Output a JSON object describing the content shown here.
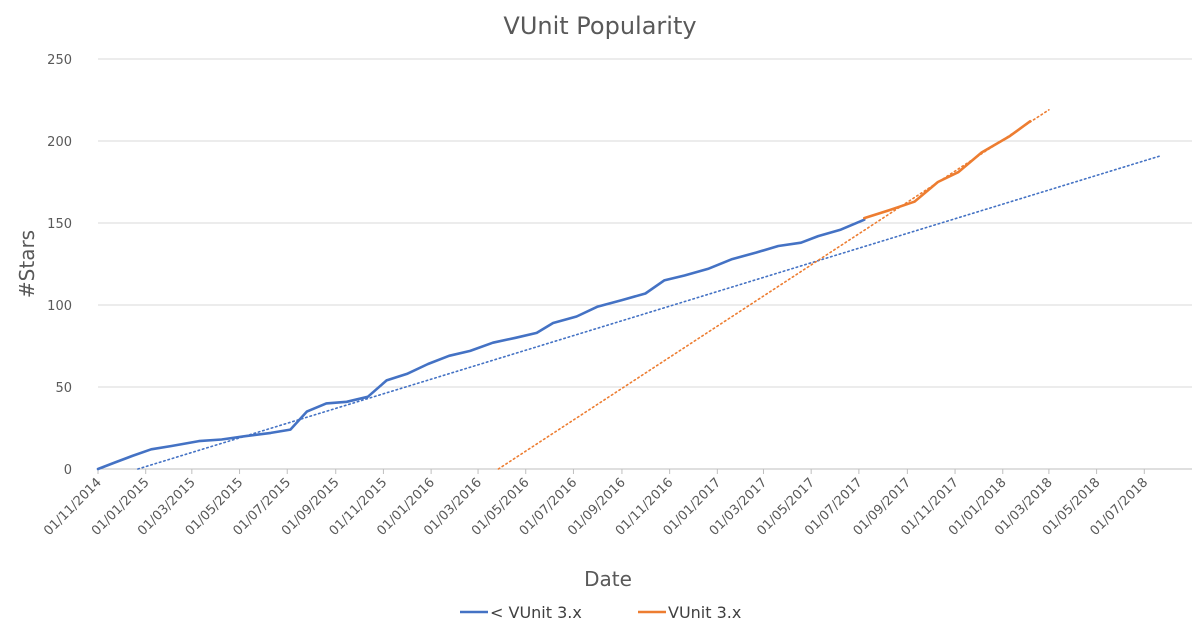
{
  "chart_data": {
    "type": "line",
    "title": "VUnit Popularity",
    "xlabel": "Date",
    "ylabel": "#Stars",
    "ylim": [
      0,
      250
    ],
    "yticks": [
      "0",
      "50",
      "100",
      "150",
      "200",
      "250"
    ],
    "xlim": [
      "2014-11-01",
      "2018-08-31"
    ],
    "xticks": [
      {
        "date": "2014-11-01",
        "label": "01/11/2014"
      },
      {
        "date": "2015-01-01",
        "label": "01/01/2015"
      },
      {
        "date": "2015-03-01",
        "label": "01/03/2015"
      },
      {
        "date": "2015-05-01",
        "label": "01/05/2015"
      },
      {
        "date": "2015-07-01",
        "label": "01/07/2015"
      },
      {
        "date": "2015-09-01",
        "label": "01/09/2015"
      },
      {
        "date": "2015-11-01",
        "label": "01/11/2015"
      },
      {
        "date": "2016-01-01",
        "label": "01/01/2016"
      },
      {
        "date": "2016-03-01",
        "label": "01/03/2016"
      },
      {
        "date": "2016-05-01",
        "label": "01/05/2016"
      },
      {
        "date": "2016-07-01",
        "label": "01/07/2016"
      },
      {
        "date": "2016-09-01",
        "label": "01/09/2016"
      },
      {
        "date": "2016-11-01",
        "label": "01/11/2016"
      },
      {
        "date": "2017-01-01",
        "label": "01/01/2017"
      },
      {
        "date": "2017-03-01",
        "label": "01/03/2017"
      },
      {
        "date": "2017-05-01",
        "label": "01/05/2017"
      },
      {
        "date": "2017-07-01",
        "label": "01/07/2017"
      },
      {
        "date": "2017-09-01",
        "label": "01/09/2017"
      },
      {
        "date": "2017-11-01",
        "label": "01/11/2017"
      },
      {
        "date": "2018-01-01",
        "label": "01/01/2018"
      },
      {
        "date": "2018-03-01",
        "label": "01/03/2018"
      },
      {
        "date": "2018-05-01",
        "label": "01/05/2018"
      },
      {
        "date": "2018-07-01",
        "label": "01/07/2018"
      }
    ],
    "grid": "horizontal",
    "legend_position": "bottom",
    "series": [
      {
        "name": "< VUnit 3.x",
        "color": "#4472C4",
        "points": [
          [
            "2014-11-01",
            0
          ],
          [
            "2014-11-23",
            4
          ],
          [
            "2014-12-15",
            8
          ],
          [
            "2015-01-08",
            12
          ],
          [
            "2015-02-03",
            14
          ],
          [
            "2015-03-10",
            17
          ],
          [
            "2015-04-08",
            18
          ],
          [
            "2015-05-08",
            20
          ],
          [
            "2015-06-10",
            22
          ],
          [
            "2015-07-05",
            24
          ],
          [
            "2015-07-26",
            35
          ],
          [
            "2015-08-20",
            40
          ],
          [
            "2015-09-15",
            41
          ],
          [
            "2015-10-12",
            44
          ],
          [
            "2015-11-05",
            54
          ],
          [
            "2015-12-01",
            58
          ],
          [
            "2015-12-28",
            64
          ],
          [
            "2016-01-24",
            69
          ],
          [
            "2016-02-20",
            72
          ],
          [
            "2016-03-20",
            77
          ],
          [
            "2016-04-18",
            80
          ],
          [
            "2016-05-15",
            83
          ],
          [
            "2016-06-05",
            89
          ],
          [
            "2016-07-05",
            93
          ],
          [
            "2016-08-01",
            99
          ],
          [
            "2016-09-01",
            103
          ],
          [
            "2016-10-01",
            107
          ],
          [
            "2016-10-25",
            115
          ],
          [
            "2016-11-20",
            118
          ],
          [
            "2016-12-20",
            122
          ],
          [
            "2017-01-20",
            128
          ],
          [
            "2017-02-20",
            132
          ],
          [
            "2017-03-20",
            136
          ],
          [
            "2017-04-18",
            138
          ],
          [
            "2017-05-10",
            142
          ],
          [
            "2017-06-08",
            146
          ],
          [
            "2017-07-08",
            152
          ]
        ]
      },
      {
        "name": "VUnit 3.x",
        "color": "#ED7D31",
        "points": [
          [
            "2017-07-08",
            153
          ],
          [
            "2017-08-10",
            158
          ],
          [
            "2017-09-10",
            163
          ],
          [
            "2017-10-10",
            175
          ],
          [
            "2017-11-05",
            181
          ],
          [
            "2017-12-05",
            193
          ],
          [
            "2018-01-10",
            203
          ],
          [
            "2018-02-05",
            212
          ]
        ]
      }
    ],
    "trendlines": [
      {
        "series": "< VUnit 3.x",
        "color": "#4472C4",
        "style": "dotted",
        "points": [
          [
            "2014-12-22",
            0
          ],
          [
            "2018-07-22",
            191
          ]
        ]
      },
      {
        "series": "VUnit 3.x",
        "color": "#ED7D31",
        "style": "dotted",
        "points": [
          [
            "2016-03-27",
            0
          ],
          [
            "2018-03-01",
            219
          ]
        ]
      }
    ]
  }
}
